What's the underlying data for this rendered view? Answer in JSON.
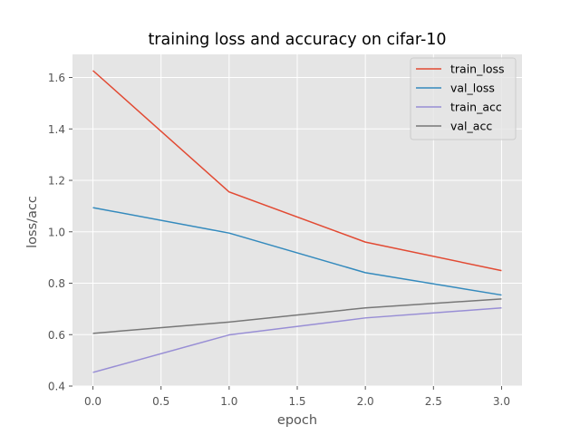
{
  "chart_data": {
    "type": "line",
    "title": "training loss and accuracy on cifar-10",
    "xlabel": "epoch",
    "ylabel": "loss/acc",
    "x": [
      0,
      1,
      2,
      3
    ],
    "xlim": [
      -0.15,
      3.15
    ],
    "ylim": [
      0.4,
      1.69
    ],
    "xticks": [
      "0.0",
      "0.5",
      "1.0",
      "1.5",
      "2.0",
      "2.5",
      "3.0"
    ],
    "yticks": [
      "0.4",
      "0.6",
      "0.8",
      "1.0",
      "1.2",
      "1.4",
      "1.6"
    ],
    "grid": true,
    "legend_position": "top-right",
    "series": [
      {
        "name": "train_loss",
        "color": "#E24A33",
        "values": [
          1.627,
          1.155,
          0.96,
          0.849
        ]
      },
      {
        "name": "val_loss",
        "color": "#348ABD",
        "values": [
          1.094,
          0.995,
          0.841,
          0.754
        ]
      },
      {
        "name": "train_acc",
        "color": "#988ED5",
        "values": [
          0.453,
          0.599,
          0.665,
          0.704
        ]
      },
      {
        "name": "val_acc",
        "color": "#777777",
        "values": [
          0.605,
          0.649,
          0.704,
          0.739
        ]
      }
    ]
  }
}
